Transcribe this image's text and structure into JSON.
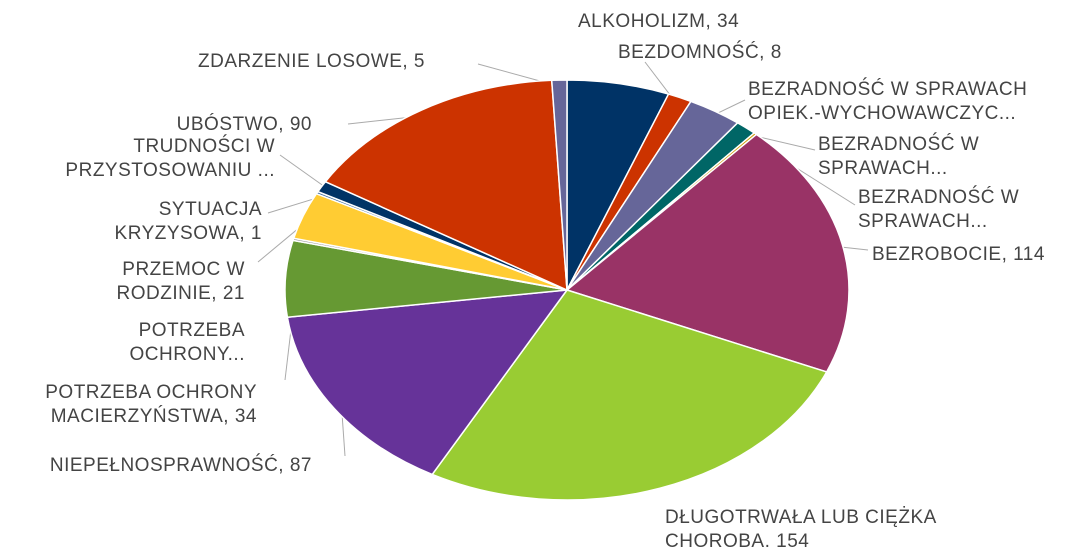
{
  "chart_data": {
    "type": "pie",
    "labels": [
      [
        "ALKOHOLIZM, 34"
      ],
      [
        "BEZDOMNOŚĆ, 8"
      ],
      [
        "BEZRADNOŚĆ W SPRAWACH",
        "OPIEK.-WYCHOWAWCZYC..."
      ],
      [
        "BEZRADNOŚĆ W",
        "SPRAWACH..."
      ],
      [
        "BEZRADNOŚĆ W",
        "SPRAWACH..."
      ],
      [
        "BEZROBOCIE, 114"
      ],
      [
        "DŁUGOTRWAŁA LUB CIĘŻKA",
        "CHOROBA, 154"
      ],
      [
        "NIEPEŁNOSPRAWNOŚĆ, 87"
      ],
      [
        "POTRZEBA OCHRONY",
        "MACIERZYŃSTWA, 34"
      ],
      [
        "POTRZEBA",
        "OCHRONY..."
      ],
      [
        "PRZEMOC W",
        "RODZINIE, 21"
      ],
      [
        "SYTUACJA",
        "KRYZYSOWA, 1"
      ],
      [
        "TRUDNOŚCI W",
        "PRZYSTOSOWANIU ..."
      ],
      [
        "UBÓSTWO, 90"
      ],
      [
        "ZDARZENIE LOSOWE, 5"
      ]
    ],
    "values": [
      34,
      8,
      18,
      7,
      1,
      114,
      154,
      87,
      34,
      1,
      21,
      1,
      5,
      90,
      5
    ],
    "colors": [
      "#003366",
      "#cc3300",
      "#666699",
      "#006666",
      "#cc9900",
      "#993366",
      "#99cc33",
      "#663399",
      "#669933",
      "#999999",
      "#ffcc33",
      "#336699",
      "#003366",
      "#cc3300",
      "#666699"
    ]
  }
}
